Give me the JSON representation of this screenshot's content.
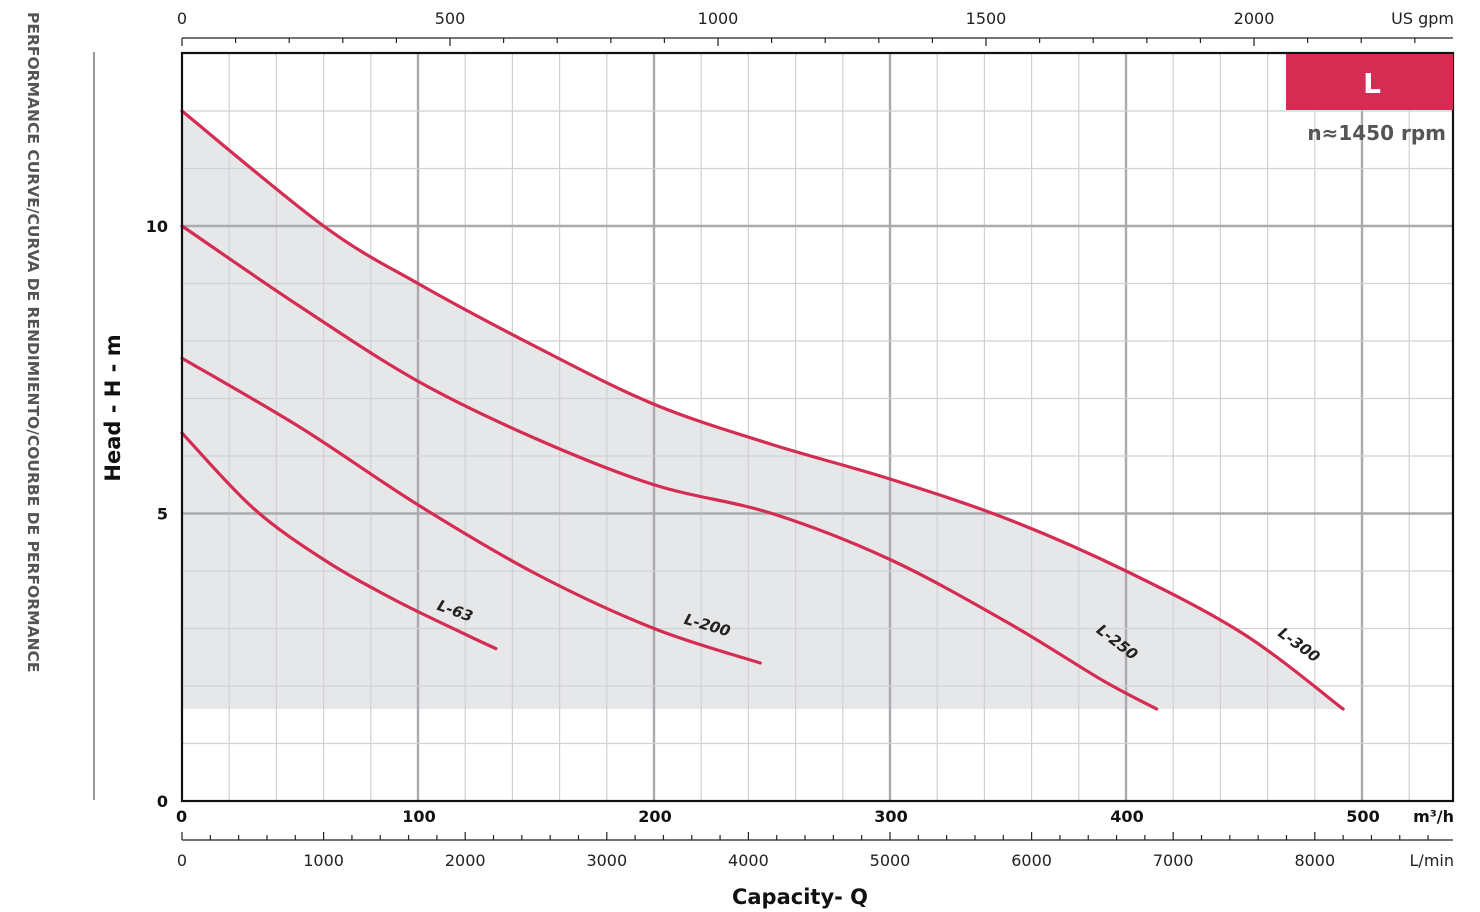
{
  "chart_data": {
    "type": "line",
    "side_title": "PERFORMANCE CURVE/CURVA DE RENDIMIENTO/COURBE DE PERFORMANCE",
    "xlabel": "Capacity- Q",
    "ylabel": "Head - H - m",
    "xlim": [
      0,
      540
    ],
    "ylim": [
      0,
      13
    ],
    "grid": true,
    "x_unit": "m³/h",
    "x_ticks": [
      0,
      100,
      200,
      300,
      400,
      500
    ],
    "y_ticks": [
      0,
      5,
      10
    ],
    "top_axis": {
      "unit": "US gpm",
      "ticks": [
        0,
        500,
        1000,
        1500,
        2000
      ]
    },
    "bottom_axis": {
      "unit": "L/min",
      "ticks": [
        0,
        1000,
        2000,
        3000,
        4000,
        5000,
        6000,
        7000,
        8000
      ]
    },
    "badge": {
      "text": "L",
      "color": "#d42c53"
    },
    "speed": "n≈1450 rpm",
    "shaded_region": {
      "color": "#e6e7e9",
      "min_head": 1.6
    },
    "curve_color": "#d42c53",
    "series": [
      {
        "name": "L-63",
        "x": [
          0,
          30,
          60,
          90,
          120,
          133
        ],
        "y": [
          6.4,
          5.1,
          4.2,
          3.5,
          2.9,
          2.65
        ]
      },
      {
        "name": "L-200",
        "x": [
          0,
          50,
          100,
          150,
          200,
          245
        ],
        "y": [
          7.7,
          6.5,
          5.15,
          3.95,
          3.0,
          2.4
        ]
      },
      {
        "name": "L-250",
        "x": [
          0,
          50,
          100,
          150,
          200,
          250,
          300,
          350,
          390,
          413
        ],
        "y": [
          10.0,
          8.6,
          7.3,
          6.3,
          5.5,
          5.0,
          4.2,
          3.1,
          2.1,
          1.6
        ]
      },
      {
        "name": "L-300",
        "x": [
          0,
          60,
          100,
          150,
          200,
          250,
          300,
          350,
          400,
          450,
          492
        ],
        "y": [
          12.0,
          10.0,
          9.0,
          7.9,
          6.9,
          6.2,
          5.6,
          4.9,
          4.0,
          2.9,
          1.6
        ]
      }
    ]
  }
}
